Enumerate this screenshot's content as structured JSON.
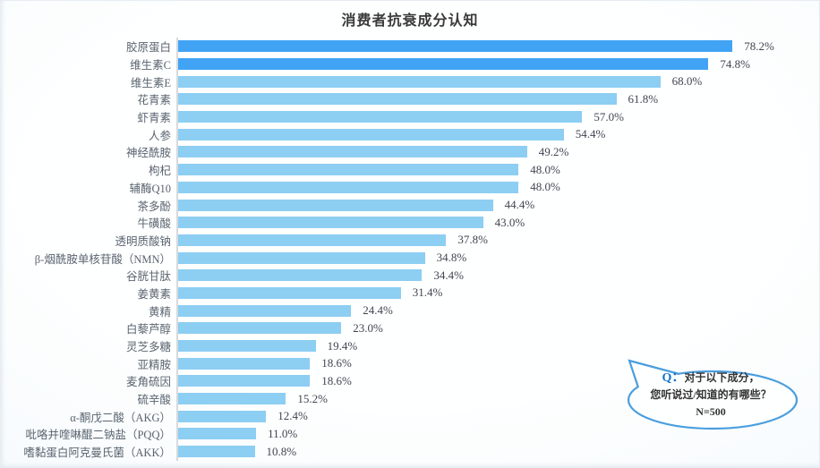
{
  "title": "消费者抗衰成分认知",
  "chart_data": {
    "type": "bar",
    "orientation": "horizontal",
    "title": "消费者抗衰成分认知",
    "unit": "%",
    "xlim": [
      0,
      100
    ],
    "grid": false,
    "categories": [
      "胶原蛋白",
      "维生素C",
      "维生素E",
      "花青素",
      "虾青素",
      "人参",
      "神经酰胺",
      "枸杞",
      "辅酶Q10",
      "茶多酚",
      "牛磺酸",
      "透明质酸钠",
      "β-烟酰胺单核苷酸（NMN）",
      "谷胱甘肽",
      "姜黄素",
      "黄精",
      "白藜芦醇",
      "灵芝多糖",
      "亚精胺",
      "麦角硫因",
      "硫辛酸",
      "α-酮戊二酸（AKG）",
      "吡咯并喹啉醌二钠盐（PQQ）",
      "嗜黏蛋白阿克曼氏菌（AKK）"
    ],
    "values": [
      78.2,
      74.8,
      68.0,
      61.8,
      57.0,
      54.4,
      49.2,
      48.0,
      48.0,
      44.4,
      43.0,
      37.8,
      34.8,
      34.4,
      31.4,
      24.4,
      23.0,
      19.4,
      18.6,
      18.6,
      15.2,
      12.4,
      11.0,
      10.8
    ],
    "value_labels": [
      "78.2%",
      "74.8%",
      "68.0%",
      "61.8%",
      "57.0%",
      "54.4%",
      "49.2%",
      "48.0%",
      "48.0%",
      "44.4%",
      "43.0%",
      "37.8%",
      "34.8%",
      "34.4%",
      "31.4%",
      "24.4%",
      "23.0%",
      "19.4%",
      "18.6%",
      "18.6%",
      "15.2%",
      "12.4%",
      "11.0%",
      "10.8%"
    ],
    "colors": {
      "bar_highlight": "#41A3F4",
      "bar_default": "#8DCEF3",
      "highlight_rows": 2,
      "axis_line": "#D6DADD"
    }
  },
  "callout": {
    "q_label": "Q：",
    "question_line1": "对于以下成分，",
    "question_line2": "您听说过/知道的有哪些？",
    "sample_size": "N=500",
    "border_color": "#4A9EDE",
    "fill_color": "#FEFFFF",
    "q_color": "#1372CC"
  }
}
